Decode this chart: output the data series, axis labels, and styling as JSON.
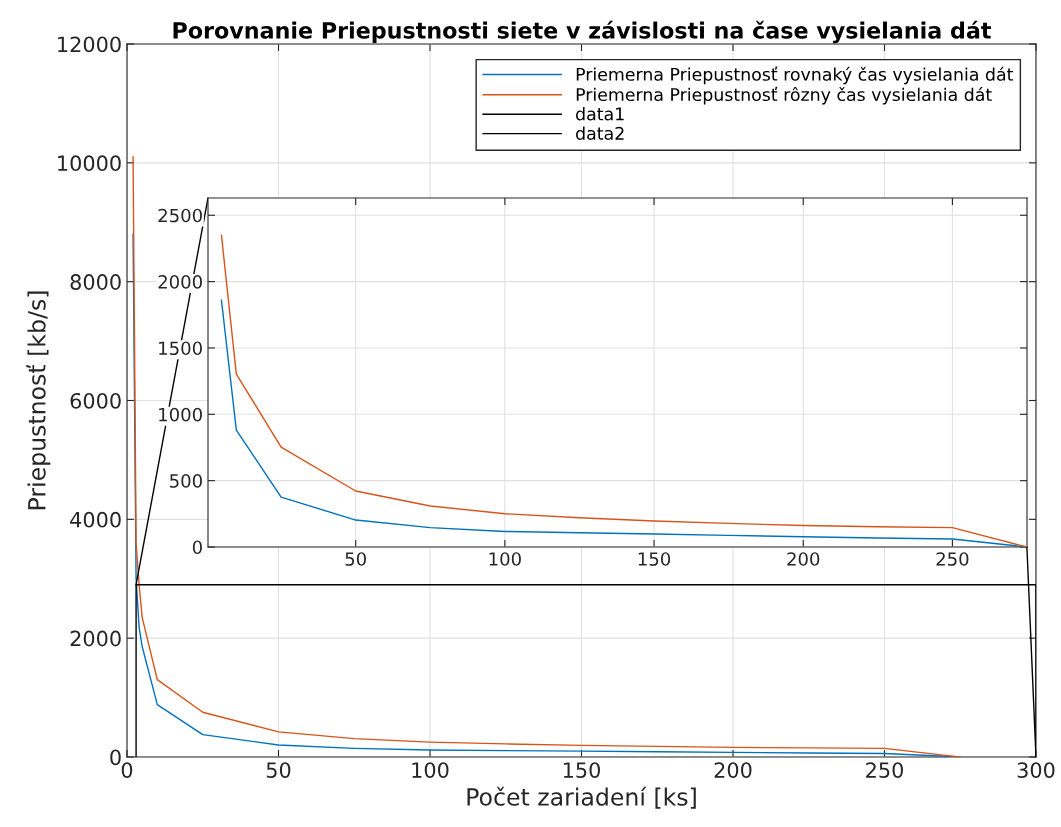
{
  "chart_data": [
    {
      "type": "line",
      "title": "Porovnanie Priepustnosti siete v závislosti na čase vysielania dát",
      "xlabel": "Počet zariadení [ks]",
      "ylabel": "Priepustnosť [kb/s]",
      "x": [
        2,
        3,
        4,
        5,
        10,
        25,
        50,
        75,
        100,
        125,
        150,
        175,
        200,
        225,
        250,
        275
      ],
      "xlim": [
        0,
        300
      ],
      "ylim": [
        0,
        12000
      ],
      "xticks": [
        0,
        50,
        100,
        150,
        200,
        250,
        300
      ],
      "yticks": [
        0,
        2000,
        4000,
        6000,
        8000,
        10000,
        12000
      ],
      "grid": true,
      "legend": "top right",
      "line_style": "solid",
      "series": [
        {
          "name": "Priemerna Priepustnosť rovnaký čas vysielania dát",
          "color": "#0072bd",
          "values": [
            8800,
            3000,
            2180,
            1860,
            881,
            376,
            203,
            146,
            117,
            107,
            98,
            88,
            77,
            68,
            60,
            0
          ]
        },
        {
          "name": "Priemerna Priepustnosť rôzny čas vysielania dát",
          "color": "#d95319",
          "values": [
            10100,
            3600,
            2900,
            2350,
            1303,
            753,
            422,
            309,
            251,
            220,
            196,
            178,
            162,
            153,
            146,
            0
          ]
        },
        {
          "name": "data1",
          "color": "#000000",
          "x": [
            3,
            3,
            300,
            300
          ],
          "values": [
            0,
            2900,
            2900,
            0
          ]
        },
        {
          "name": "data2",
          "color": "#000000",
          "x": [
            26.7,
            3,
            null,
            297,
            300
          ],
          "values": [
            9400,
            2900,
            null,
            3530,
            0
          ]
        }
      ]
    },
    {
      "type": "line",
      "x": [
        5,
        10,
        25,
        50,
        75,
        100,
        125,
        150,
        175,
        200,
        225,
        250,
        275
      ],
      "xlim": [
        0.5,
        275
      ],
      "ylim": [
        0,
        2630
      ],
      "xticks": [
        50,
        100,
        150,
        200,
        250
      ],
      "yticks": [
        0,
        500,
        1000,
        1500,
        2000,
        2500
      ],
      "grid": true,
      "line_style": "solid",
      "series": [
        {
          "color": "#0072bd",
          "values": [
            1860,
            881,
            376,
            203,
            146,
            117,
            107,
            98,
            88,
            77,
            68,
            60,
            0
          ]
        },
        {
          "color": "#d95319",
          "values": [
            2350,
            1303,
            753,
            422,
            309,
            251,
            220,
            196,
            178,
            162,
            153,
            146,
            0
          ]
        }
      ]
    }
  ]
}
